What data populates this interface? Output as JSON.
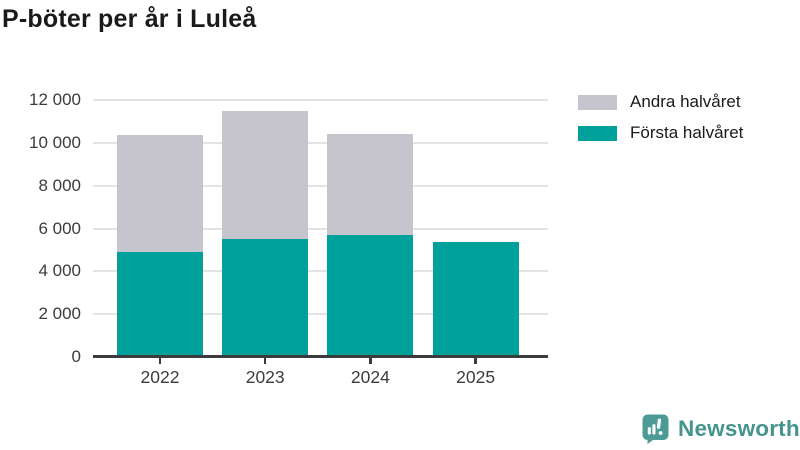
{
  "title": "P-böter per år i Luleå",
  "legend": {
    "items": [
      {
        "label": "Andra halvåret",
        "color": "#c6c5ce"
      },
      {
        "label": "Första halvåret",
        "color": "#00a19a"
      }
    ]
  },
  "chart_data": {
    "type": "bar",
    "stacked": true,
    "title": "P-böter per år i Luleå",
    "categories": [
      "2022",
      "2023",
      "2024",
      "2025"
    ],
    "series": [
      {
        "name": "Första halvåret",
        "color": "#00a19a",
        "values": [
          4920,
          5530,
          5680,
          5390
        ]
      },
      {
        "name": "Andra halvåret",
        "color": "#c6c5ce",
        "values": [
          5440,
          5970,
          4750,
          0
        ]
      }
    ],
    "totals": [
      10360,
      11500,
      10430,
      5390
    ],
    "xlabel": "",
    "ylabel": "",
    "ylim": [
      0,
      12000
    ],
    "yticks": [
      0,
      2000,
      4000,
      6000,
      8000,
      10000,
      12000
    ],
    "ytick_labels": [
      "0",
      "2 000",
      "4 000",
      "6 000",
      "8 000",
      "10 000",
      "12 000"
    ],
    "grid": true,
    "legend_position": "top-right"
  },
  "footer": {
    "brand": "Newsworthy",
    "brand_color": "#45948f",
    "icon_color": "#4c9b96"
  }
}
